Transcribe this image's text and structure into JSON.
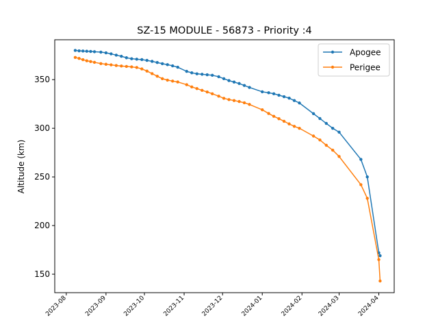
{
  "chart_data": {
    "type": "line",
    "title": "SZ-15 MODULE - 56873 - Priority :4",
    "xlabel": "",
    "ylabel": "Altitude (km)",
    "x_ticks": [
      "2023-08",
      "2023-09",
      "2023-10",
      "2023-11",
      "2023-12",
      "2024-01",
      "2024-02",
      "2024-03",
      "2024-04"
    ],
    "y_ticks": [
      150,
      200,
      250,
      300,
      350
    ],
    "xlim": [
      "2023-07-23",
      "2024-04-13"
    ],
    "ylim": [
      131,
      391
    ],
    "grid": false,
    "legend_position": "top-right",
    "colors": {
      "Apogee": "#1f77b4",
      "Perigee": "#ff7f0e"
    },
    "x": [
      "2023-08-08",
      "2023-08-11",
      "2023-08-14",
      "2023-08-17",
      "2023-08-20",
      "2023-08-23",
      "2023-08-28",
      "2023-09-01",
      "2023-09-05",
      "2023-09-09",
      "2023-09-13",
      "2023-09-17",
      "2023-09-21",
      "2023-09-25",
      "2023-09-29",
      "2023-10-03",
      "2023-10-07",
      "2023-10-11",
      "2023-10-15",
      "2023-10-19",
      "2023-10-23",
      "2023-10-27",
      "2023-11-03",
      "2023-11-07",
      "2023-11-11",
      "2023-11-15",
      "2023-11-19",
      "2023-11-23",
      "2023-11-28",
      "2023-12-02",
      "2023-12-06",
      "2023-12-10",
      "2023-12-14",
      "2023-12-18",
      "2023-12-22",
      "2024-01-01",
      "2024-01-06",
      "2024-01-10",
      "2024-01-14",
      "2024-01-18",
      "2024-01-22",
      "2024-01-26",
      "2024-01-30",
      "2024-02-10",
      "2024-02-15",
      "2024-02-20",
      "2024-02-25",
      "2024-03-01",
      "2024-03-18",
      "2024-03-23",
      "2024-04-01",
      "2024-04-02"
    ],
    "series": [
      {
        "name": "Apogee",
        "values": [
          380,
          379.6,
          379.4,
          379.2,
          379,
          378.7,
          378.3,
          377.6,
          376.5,
          375.2,
          374,
          372.5,
          371.5,
          371,
          370.6,
          369.8,
          368.8,
          367.6,
          366.4,
          365.4,
          364.2,
          362.8,
          358.5,
          357,
          356,
          355.5,
          355,
          354.5,
          353,
          351,
          349,
          347.5,
          346,
          344,
          342,
          337.5,
          336.5,
          335.5,
          334,
          332.5,
          331,
          328.5,
          326,
          315,
          310,
          305,
          300,
          296,
          268,
          250,
          172,
          169
        ]
      },
      {
        "name": "Perigee",
        "values": [
          372.8,
          371.8,
          370.5,
          369.4,
          368.6,
          367.8,
          366.5,
          365.8,
          365.2,
          364.5,
          364,
          363.6,
          363.1,
          362.5,
          361,
          358.8,
          356.2,
          353.5,
          351,
          349.5,
          348.5,
          347.6,
          344.8,
          342.5,
          340.8,
          339,
          337.3,
          335.5,
          333,
          330.8,
          329.5,
          328.5,
          327.5,
          326.2,
          324.5,
          319,
          315.2,
          312.3,
          309.8,
          307.2,
          304.5,
          302,
          300,
          292,
          288,
          282.5,
          277.5,
          271,
          242,
          228,
          165,
          143
        ]
      }
    ]
  }
}
